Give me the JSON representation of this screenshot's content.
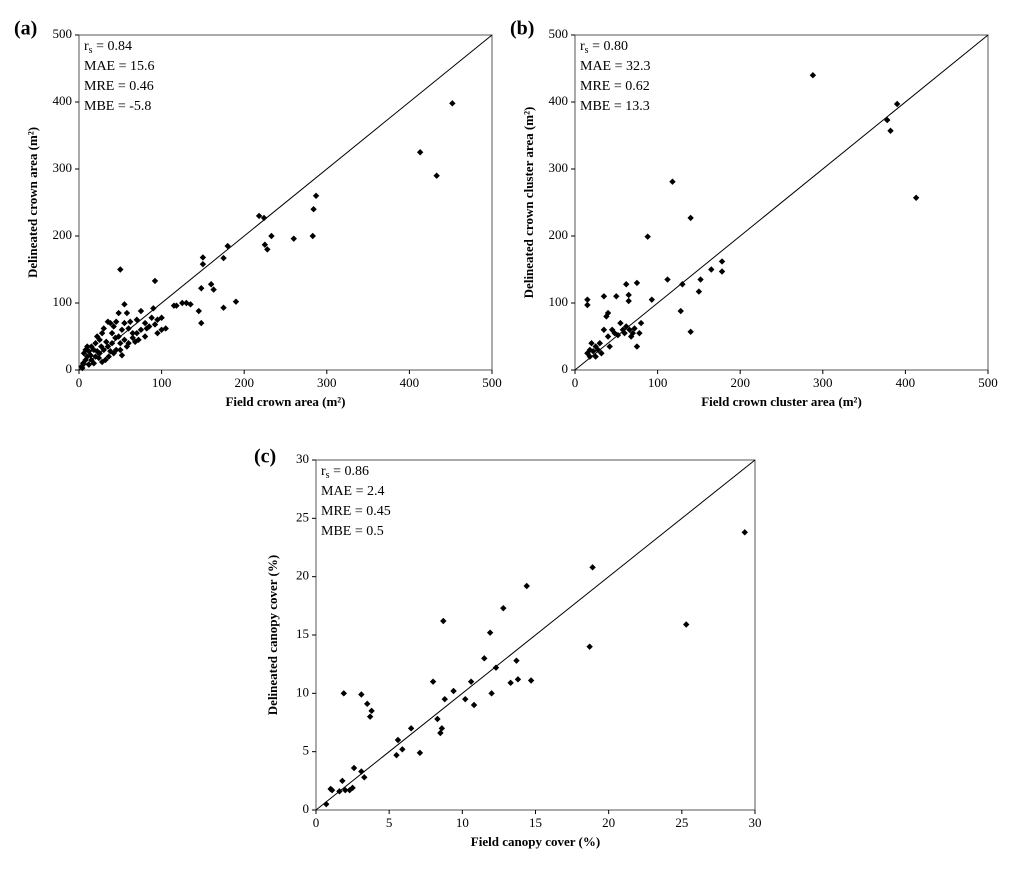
{
  "chart_data": [
    {
      "type": "scatter",
      "label": "(a)",
      "xlabel": "Field crown area (m²)",
      "ylabel": "Delineated crown area (m²)",
      "annotations": [
        {
          "main": "r",
          "sub": "s",
          "rest": " = 0.84"
        },
        "MAE = 15.6",
        "MRE = 0.46",
        "MBE = -5.8"
      ],
      "color": "#000000",
      "xlim": [
        0,
        500
      ],
      "ylim": [
        0,
        500
      ],
      "xticks": [
        0,
        100,
        200,
        300,
        400,
        500
      ],
      "yticks": [
        0,
        100,
        200,
        300,
        400,
        500
      ],
      "x": [
        452,
        413,
        433,
        287,
        284,
        283,
        260,
        233,
        225,
        228,
        218,
        224,
        180,
        175,
        190,
        175,
        150,
        150,
        148,
        148,
        145,
        160,
        163,
        130,
        125,
        135,
        118,
        115,
        92,
        50,
        90,
        95,
        100,
        100,
        92,
        95,
        105,
        88,
        80,
        82,
        75,
        70,
        72,
        65,
        60,
        55,
        58,
        55,
        52,
        50,
        48,
        45,
        42,
        40,
        38,
        35,
        30,
        28,
        25,
        22,
        20,
        18,
        15,
        12,
        10,
        8,
        5,
        3,
        6,
        10,
        15,
        20,
        25,
        30,
        35,
        40,
        45,
        50,
        55,
        60,
        65,
        70,
        80,
        85,
        75,
        62,
        48,
        42,
        36,
        32,
        28,
        24,
        18,
        14,
        8,
        12,
        4,
        22,
        27,
        33,
        38,
        44,
        52,
        58,
        68
      ],
      "values": [
        398,
        325,
        290,
        260,
        240,
        200,
        196,
        200,
        187,
        180,
        230,
        227,
        185,
        167,
        102,
        93,
        168,
        158,
        122,
        70,
        88,
        128,
        120,
        100,
        100,
        98,
        96,
        96,
        133,
        150,
        92,
        75,
        78,
        60,
        68,
        55,
        62,
        78,
        70,
        62,
        88,
        55,
        45,
        48,
        62,
        98,
        85,
        70,
        60,
        40,
        85,
        72,
        65,
        55,
        70,
        72,
        62,
        55,
        45,
        50,
        40,
        30,
        35,
        28,
        20,
        15,
        10,
        5,
        25,
        35,
        15,
        20,
        25,
        30,
        35,
        40,
        30,
        30,
        45,
        40,
        55,
        75,
        50,
        65,
        60,
        72,
        50,
        25,
        20,
        15,
        12,
        18,
        10,
        22,
        30,
        8,
        3,
        28,
        35,
        42,
        28,
        48,
        22,
        35,
        42
      ]
    },
    {
      "type": "scatter",
      "label": "(b)",
      "xlabel": "Field crown cluster area (m²)",
      "ylabel": "Delineated crown cluster area (m²)",
      "annotations": [
        {
          "main": "r",
          "sub": "s",
          "rest": " = 0.80"
        },
        "MAE = 32.3",
        "MRE = 0.62",
        "MBE = 13.3"
      ],
      "color": "#000000",
      "xlim": [
        0,
        500
      ],
      "ylim": [
        0,
        500
      ],
      "xticks": [
        0,
        100,
        200,
        300,
        400,
        500
      ],
      "yticks": [
        0,
        100,
        200,
        300,
        400,
        500
      ],
      "x": [
        288,
        390,
        378,
        382,
        413,
        118,
        140,
        88,
        178,
        178,
        165,
        152,
        150,
        130,
        128,
        140,
        112,
        93,
        75,
        65,
        65,
        62,
        50,
        35,
        15,
        15,
        40,
        38,
        48,
        52,
        58,
        60,
        66,
        70,
        78,
        75,
        62,
        55,
        45,
        40,
        35,
        30,
        25,
        22,
        20,
        18,
        15,
        18,
        25,
        28,
        32,
        42,
        68,
        72,
        80
      ],
      "values": [
        440,
        397,
        373,
        357,
        257,
        281,
        227,
        199,
        162,
        147,
        150,
        135,
        117,
        128,
        88,
        57,
        135,
        105,
        130,
        112,
        103,
        128,
        110,
        110,
        105,
        97,
        85,
        80,
        55,
        52,
        60,
        55,
        60,
        55,
        55,
        35,
        65,
        70,
        60,
        50,
        60,
        40,
        35,
        28,
        40,
        30,
        25,
        20,
        20,
        30,
        25,
        35,
        50,
        62,
        70
      ]
    },
    {
      "type": "scatter",
      "label": "(c)",
      "xlabel": "Field canopy cover (%)",
      "ylabel": "Delineated canopy cover (%)",
      "annotations": [
        {
          "main": "r",
          "sub": "s",
          "rest": " = 0.86"
        },
        "MAE = 2.4",
        "MRE = 0.45",
        "MBE = 0.5"
      ],
      "color": "#000000",
      "xlim": [
        0,
        30
      ],
      "ylim": [
        0,
        30
      ],
      "xticks": [
        0,
        5,
        10,
        15,
        20,
        25,
        30
      ],
      "yticks": [
        0,
        5,
        10,
        15,
        20,
        25,
        30
      ],
      "x": [
        29.3,
        25.3,
        18.9,
        18.7,
        14.4,
        14.7,
        13.7,
        13.8,
        13.3,
        12.8,
        12.3,
        11.9,
        12.0,
        11.5,
        10.8,
        10.6,
        10.2,
        9.4,
        8.7,
        8.8,
        8.0,
        8.3,
        8.5,
        8.6,
        7.1,
        6.5,
        5.9,
        5.6,
        5.5,
        3.7,
        3.8,
        3.5,
        3.1,
        1.9,
        3.3,
        3.1,
        2.6,
        2.5,
        2.3,
        2.0,
        1.8,
        1.6,
        1.1,
        1.0,
        0.7
      ],
      "values": [
        23.8,
        15.9,
        20.8,
        14.0,
        19.2,
        11.1,
        12.8,
        11.2,
        10.9,
        17.3,
        12.2,
        15.2,
        10.0,
        13.0,
        9.0,
        11.0,
        9.5,
        10.2,
        16.2,
        9.5,
        11.0,
        7.8,
        6.6,
        7.0,
        4.9,
        7.0,
        5.2,
        6.0,
        4.7,
        8.0,
        8.5,
        9.1,
        9.9,
        10.0,
        2.8,
        3.3,
        3.6,
        1.9,
        1.7,
        1.7,
        2.5,
        1.6,
        1.7,
        1.8,
        0.5
      ]
    }
  ]
}
